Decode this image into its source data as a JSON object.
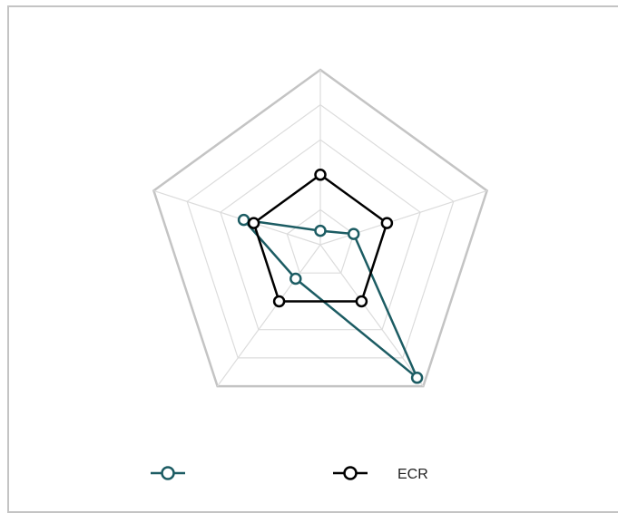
{
  "chart_data": {
    "type": "radar",
    "title": "",
    "axes_count": 5,
    "range": [
      0,
      5
    ],
    "grid_levels": 5,
    "grid": true,
    "legend_position": "bottom",
    "series": [
      {
        "name": "",
        "color": "#1c5c63",
        "values": [
          0.4,
          1.0,
          4.7,
          1.2,
          2.3
        ]
      },
      {
        "name": "ECR",
        "color": "#000000",
        "values": [
          2.0,
          2.0,
          2.0,
          2.0,
          2.0
        ]
      }
    ]
  }
}
